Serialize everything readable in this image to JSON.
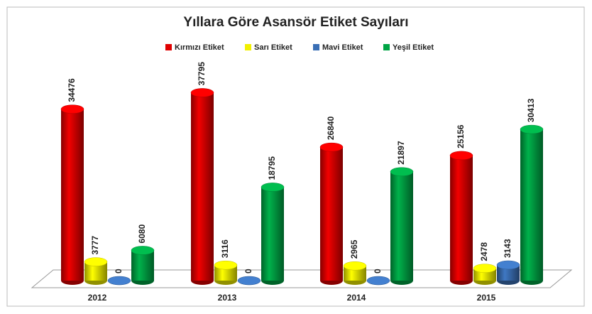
{
  "chart_data": {
    "type": "bar3d",
    "title": "Yıllara Göre Asansör Etiket Sayıları",
    "categories": [
      "2012",
      "2013",
      "2014",
      "2015"
    ],
    "series": [
      {
        "name": "Kırmızı Etiket",
        "color": "#e00000",
        "values": [
          34476,
          37795,
          26840,
          25156
        ]
      },
      {
        "name": "Sarı Etiket",
        "color": "#f2f000",
        "values": [
          3777,
          3116,
          2965,
          2478
        ]
      },
      {
        "name": "Mavi Etiket",
        "color": "#3a6fb5",
        "values": [
          0,
          0,
          0,
          3143
        ]
      },
      {
        "name": "Yeşil Etiket",
        "color": "#00a545",
        "values": [
          6080,
          18795,
          21897,
          30413
        ]
      }
    ],
    "ylim": [
      0,
      40000
    ],
    "legend": "top"
  }
}
